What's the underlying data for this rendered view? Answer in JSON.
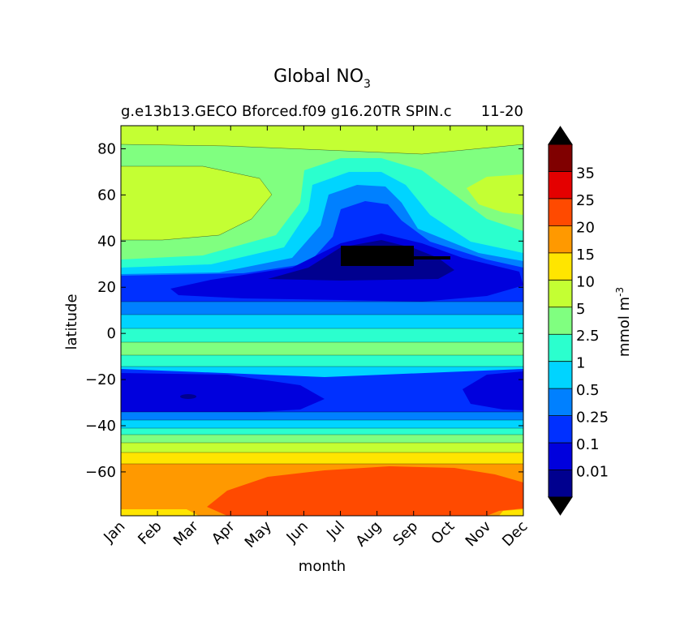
{
  "chart_data": {
    "type": "heatmap",
    "subtype": "filled-contour",
    "title_main": "Global NO",
    "title_sub": "3",
    "subtitle": "g.e13b13.GECO Bforced.f09 g16.20TR SPIN.c",
    "subtitle_overlap": "11-20",
    "xlabel": "month",
    "ylabel": "latitude",
    "x_ticks": [
      "Jan",
      "Feb",
      "Mar",
      "Apr",
      "May",
      "Jun",
      "Jul",
      "Aug",
      "Sep",
      "Oct",
      "Nov",
      "Dec"
    ],
    "y_ticks": [
      80,
      60,
      40,
      20,
      0,
      -20,
      -40,
      -60
    ],
    "ylim": [
      -79,
      90
    ],
    "colorbar": {
      "label": "mmol m",
      "label_exponent": "-3",
      "tick_labels": [
        "0.01",
        "0.1",
        "0.25",
        "0.5",
        "1",
        "2.5",
        "5",
        "10",
        "15",
        "20",
        "25",
        "35"
      ],
      "colors": [
        "#00008f",
        "#0000dd",
        "#0030ff",
        "#0080ff",
        "#00d4ff",
        "#2bffce",
        "#80ff80",
        "#c4ff33",
        "#ffe500",
        "#ff9900",
        "#ff4a00",
        "#e40000",
        "#800000"
      ],
      "extend_low_color": "#000000",
      "extend_high_color": "#000000"
    },
    "latitude_bands": [
      {
        "lat_range": [
          -79,
          -74
        ],
        "level": "15-20"
      },
      {
        "lat_range": [
          -74,
          -58
        ],
        "level": "20-25"
      },
      {
        "lat_range": [
          -58,
          -49
        ],
        "level": "15-20"
      },
      {
        "lat_range": [
          -49,
          -44
        ],
        "level": "10-15"
      },
      {
        "lat_range": [
          -44,
          -37
        ],
        "level": "5-10"
      },
      {
        "lat_range": [
          -37,
          -33
        ],
        "level": "2.5-5"
      },
      {
        "lat_range": [
          -33,
          -29
        ],
        "level": "1-2.5"
      },
      {
        "lat_range": [
          -29,
          -18
        ],
        "level": "0.01-0.25"
      },
      {
        "lat_range": [
          -18,
          -8
        ],
        "level": "0.5-1"
      },
      {
        "lat_range": [
          -8,
          5
        ],
        "level": "2.5-5"
      },
      {
        "lat_range": [
          5,
          18
        ],
        "level": "0.5-1"
      },
      {
        "lat_range": [
          18,
          28
        ],
        "level": "0.01-0.25"
      },
      {
        "lat_range": [
          28,
          40
        ],
        "level": "1-5"
      },
      {
        "lat_range": [
          40,
          75
        ],
        "level": "5-10"
      },
      {
        "lat_range": [
          75,
          90
        ],
        "level": "5-10"
      }
    ]
  }
}
